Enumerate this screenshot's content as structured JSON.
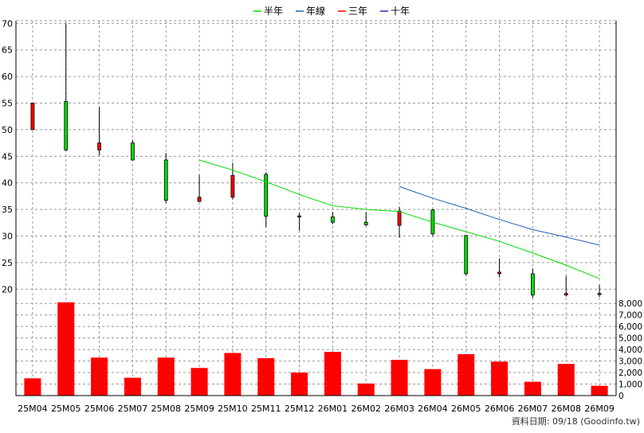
{
  "chart_data": {
    "type": "candlestick",
    "legend": {
      "placement": "top-center",
      "items": [
        {
          "label": "半年",
          "color": "#00dd00"
        },
        {
          "label": "年線",
          "color": "#2060c0"
        },
        {
          "label": "三年",
          "color": "#ff0000"
        },
        {
          "label": "十年",
          "color": "#4020c0"
        }
      ]
    },
    "categories": [
      "25M04",
      "25M05",
      "25M06",
      "25M07",
      "25M08",
      "25M09",
      "25M10",
      "25M11",
      "25M12",
      "26M01",
      "26M02",
      "26M03",
      "26M04",
      "26M05",
      "26M06",
      "26M07",
      "26M08",
      "26M09"
    ],
    "price_axis": {
      "ylim": [
        17.5,
        70.5
      ],
      "ticks": [
        "20",
        "25",
        "30",
        "35",
        "40",
        "45",
        "50",
        "55",
        "60",
        "65",
        "70"
      ],
      "tick_values": [
        20,
        25,
        30,
        35,
        40,
        45,
        50,
        55,
        60,
        65,
        70
      ],
      "grid": true
    },
    "volume_axis": {
      "ylim": [
        0,
        8500
      ],
      "ticks": [
        "0",
        "1,000",
        "2,000",
        "3,000",
        "4,000",
        "5,000",
        "6,000",
        "7,000",
        "8,000"
      ],
      "tick_values": [
        0,
        1000,
        2000,
        3000,
        4000,
        5000,
        6000,
        7000,
        8000
      ],
      "grid": true
    },
    "candles": [
      {
        "open": 50.0,
        "high": 55.0,
        "low": 50.0,
        "close": 55.0
      },
      {
        "open": 55.3,
        "high": 70.0,
        "low": 46.0,
        "close": 46.2
      },
      {
        "open": 46.2,
        "high": 54.3,
        "low": 45.2,
        "close": 47.5
      },
      {
        "open": 47.5,
        "high": 48.1,
        "low": 44.2,
        "close": 44.3
      },
      {
        "open": 44.3,
        "high": 45.6,
        "low": 36.2,
        "close": 36.7
      },
      {
        "open": 36.5,
        "high": 41.5,
        "low": 36.4,
        "close": 37.3
      },
      {
        "open": 37.3,
        "high": 43.8,
        "low": 36.9,
        "close": 41.4
      },
      {
        "open": 41.6,
        "high": 42.0,
        "low": 31.7,
        "close": 33.7
      },
      {
        "open": 33.7,
        "high": 34.3,
        "low": 31.0,
        "close": 33.8
      },
      {
        "open": 33.6,
        "high": 34.5,
        "low": 32.2,
        "close": 32.6
      },
      {
        "open": 32.6,
        "high": 34.5,
        "low": 31.9,
        "close": 32.1
      },
      {
        "open": 32.0,
        "high": 35.5,
        "low": 29.7,
        "close": 34.7
      },
      {
        "open": 34.9,
        "high": 35.1,
        "low": 30.0,
        "close": 30.4
      },
      {
        "open": 30.1,
        "high": 30.2,
        "low": 22.6,
        "close": 22.9
      },
      {
        "open": 22.9,
        "high": 25.8,
        "low": 22.2,
        "close": 23.2
      },
      {
        "open": 22.9,
        "high": 23.9,
        "low": 18.4,
        "close": 18.9
      },
      {
        "open": 18.9,
        "high": 22.5,
        "low": 18.6,
        "close": 19.2
      },
      {
        "open": 19.0,
        "high": 20.8,
        "low": 18.5,
        "close": 19.2
      }
    ],
    "series": [
      {
        "name": "半年",
        "color": "#00dd00",
        "values": [
          null,
          null,
          null,
          null,
          null,
          44.3,
          42.4,
          40.2,
          37.8,
          35.7,
          35.0,
          34.6,
          32.6,
          30.8,
          29.0,
          26.8,
          24.5,
          22.0
        ]
      },
      {
        "name": "年線",
        "color": "#2060c0",
        "values": [
          null,
          null,
          null,
          null,
          null,
          null,
          null,
          null,
          null,
          null,
          null,
          39.3,
          37.1,
          35.2,
          33.1,
          31.2,
          29.8,
          28.3
        ]
      }
    ],
    "volume": [
      1500,
      8100,
      3300,
      1550,
      3300,
      2400,
      3700,
      3250,
      2000,
      3800,
      1050,
      3100,
      2300,
      3600,
      2950,
      1200,
      2750,
      850
    ],
    "footer_note": "資料日期: 09/18  (Goodinfo.tw)"
  }
}
